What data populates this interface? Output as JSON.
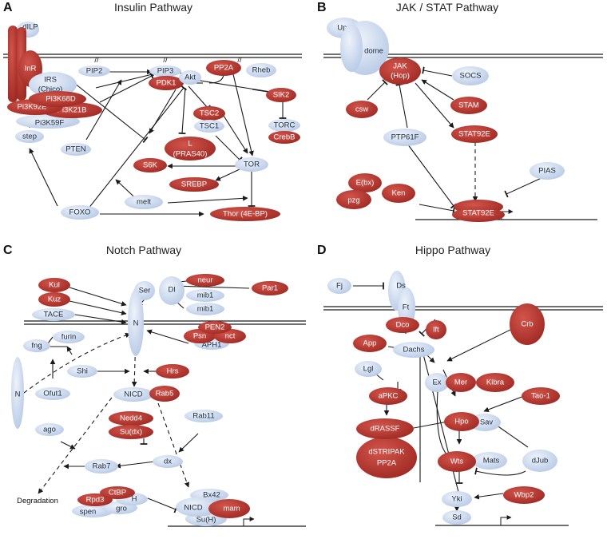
{
  "panels": {
    "A": {
      "letter": "A",
      "title": "Insulin Pathway"
    },
    "B": {
      "letter": "B",
      "title": "JAK / STAT Pathway"
    },
    "C": {
      "letter": "C",
      "title": "Notch Pathway"
    },
    "D": {
      "letter": "D",
      "title": "Hippo  Pathway"
    }
  },
  "colors": {
    "red": "#b0312b",
    "blue": "#c8d7ee",
    "line": "#1a1a1a"
  },
  "nodes": {
    "A": {
      "dilp": "dILP",
      "inr": "InR",
      "irs1": "IRS",
      "irs2": "(Chico)",
      "pi3k68d": "Pi3K68D",
      "pi3k92e": "Pi3K92E",
      "pi3k21b": "Pi3K21B",
      "pi3k59f": "Pi3K59F",
      "pip2": "PIP2",
      "pip3": "PIP3",
      "pdk1": "PDK1",
      "akt": "Akt",
      "pp2a": "PP2A",
      "rheb": "Rheb",
      "sik2": "SIK2",
      "tsc2": "TSC2",
      "tsc1": "TSC1",
      "torc": "TORC",
      "crebb": "CrebB",
      "l1": "L",
      "l2": "(PRAS40)",
      "pten": "PTEN",
      "step": "step",
      "s6k": "S6K",
      "tor": "TOR",
      "srebp": "SREBP",
      "foxo": "FOXO",
      "melt": "melt",
      "thor": "Thor (4E-BP)"
    },
    "B": {
      "upd": "Upd",
      "dome": "dome",
      "jak1": "JAK",
      "jak2": "(Hop)",
      "socs": "SOCS",
      "csw": "csw",
      "stam": "STAM",
      "ptp61f": "PTP61F",
      "stat92e_a": "STAT92E",
      "pias": "PIAS",
      "ebx": "E(bx)",
      "pzg": "pzg",
      "ken": "Ken",
      "stat92e_b": "STAT92E"
    },
    "C": {
      "kul": "Kul",
      "kuz": "Kuz",
      "tace": "TACE",
      "ser": "Ser",
      "dl": "Dl",
      "neur": "neur",
      "par1": "Par1",
      "mib1a": "mib1",
      "mib1b": "mib1",
      "n_mem": "N",
      "pen2": "PEN2",
      "psn": "Psn",
      "nct": "nct",
      "aph1": "APH1",
      "furin": "furin",
      "fng": "fng",
      "n_free": "N",
      "ofut1": "Ofut1",
      "shi": "Shi",
      "hrs": "Hrs",
      "nicd": "NICD",
      "rab5": "Rab5",
      "rab11": "Rab11",
      "nedd4": "Nedd4",
      "sudx": "Su(dx)",
      "ago": "ago",
      "dx": "dx",
      "rab7": "Rab7",
      "degradation": "Degradation",
      "ctbp": "CtBP",
      "rpd3": "Rpd3",
      "h": "H",
      "spen": "spen",
      "gro": "gro",
      "bx42": "Bx42",
      "nicd2": "NICD",
      "mam": "mam",
      "suh": "Su(H)"
    },
    "D": {
      "fj": "Fj",
      "ds": "Ds",
      "ft": "Ft",
      "dco": "Dco",
      "lft": "lft",
      "crb": "Crb",
      "app": "App",
      "dachs": "Dachs",
      "lgl": "Lgl",
      "ex": "Ex",
      "mer": "Mer",
      "kibra": "Kibra",
      "apkc": "aPKC",
      "tao1": "Tao-1",
      "hpo": "Hpo",
      "sav": "Sav",
      "drassf": "dRASSF",
      "dstripak1": "dSTRIPAK",
      "dstripak2": "PP2A",
      "wts": "Wts",
      "mats": "Mats",
      "djub": "dJub",
      "wbp2": "Wbp2",
      "yki": "Yki",
      "sd": "Sd"
    }
  }
}
